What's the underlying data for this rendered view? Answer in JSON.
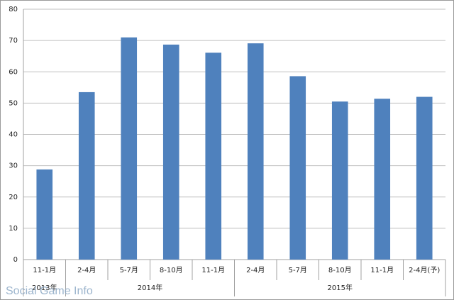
{
  "chart_data": {
    "type": "bar",
    "categories": [
      "11-1月",
      "2-4月",
      "5-7月",
      "8-10月",
      "11-1月",
      "2-4月",
      "5-7月",
      "8-10月",
      "11-1月",
      "2-4月(予)"
    ],
    "groups": [
      {
        "label": "2013年",
        "count": 1
      },
      {
        "label": "2014年",
        "count": 4
      },
      {
        "label": "2015年",
        "count": 5
      }
    ],
    "values": [
      28.8,
      53.5,
      71,
      68.7,
      66.1,
      69.1,
      58.6,
      50.5,
      51.4,
      52
    ],
    "color": "#4f81bd",
    "ylim": [
      0,
      80
    ],
    "yticks": [
      0,
      10,
      20,
      30,
      40,
      50,
      60,
      70,
      80
    ],
    "grid": true,
    "watermark": "Social Game Info"
  }
}
